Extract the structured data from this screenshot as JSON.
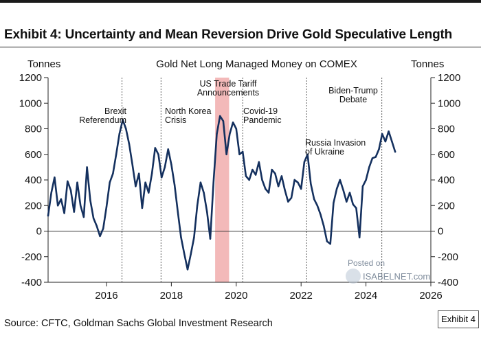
{
  "header": {
    "title": "Exhibit 4: Uncertainty and Mean Reversion Drive Gold Speculative Length",
    "source": "Source: CFTC, Goldman Sachs Global Investment Research",
    "exhibit_tag": "Exhibit 4"
  },
  "watermark": {
    "line1": "Posted on",
    "line2": "ISABELNET.com"
  },
  "colors": {
    "line": "#14305e",
    "shade": "#f0a8a8",
    "axis": "#222222"
  },
  "chart_data": {
    "type": "line",
    "title": "Gold Net Long Managed Money on COMEX",
    "ylabel_left": "Tonnes",
    "ylabel_right": "Tonnes",
    "xlim": [
      2014.2,
      2026
    ],
    "ylim": [
      -400,
      1200
    ],
    "yticks": [
      1200,
      1000,
      800,
      600,
      400,
      200,
      0,
      -200,
      -400
    ],
    "xticks": [
      2016,
      2018,
      2020,
      2022,
      2024,
      2026
    ],
    "shaded_region": {
      "label": "US Trade Tariff Announcements",
      "x_start": 2019.35,
      "x_end": 2019.78
    },
    "events": [
      {
        "lines": [
          "Brexit",
          "Referendum"
        ],
        "x": 2016.48
      },
      {
        "lines": [
          "North Korea",
          "Crisis"
        ],
        "x": 2017.68
      },
      {
        "lines": [
          "US Trade Tariff",
          "Announcements"
        ],
        "x": 2019.55
      },
      {
        "lines": [
          "Covid-19",
          "Pandemic"
        ],
        "x": 2020.2
      },
      {
        "lines": [
          "Russia Invasion",
          "of Ukraine"
        ],
        "x": 2022.17
      },
      {
        "lines": [
          "Biden-Trump",
          "Debate"
        ],
        "x": 2024.49
      }
    ],
    "series": [
      {
        "name": "Gold Net Long Managed Money",
        "x": [
          2014.2,
          2014.3,
          2014.4,
          2014.5,
          2014.6,
          2014.7,
          2014.8,
          2014.9,
          2015.0,
          2015.1,
          2015.2,
          2015.3,
          2015.4,
          2015.5,
          2015.6,
          2015.7,
          2015.8,
          2015.9,
          2016.0,
          2016.1,
          2016.2,
          2016.3,
          2016.4,
          2016.5,
          2016.6,
          2016.7,
          2016.8,
          2016.9,
          2017.0,
          2017.1,
          2017.2,
          2017.3,
          2017.4,
          2017.5,
          2017.6,
          2017.7,
          2017.8,
          2017.9,
          2018.0,
          2018.1,
          2018.2,
          2018.3,
          2018.4,
          2018.5,
          2018.6,
          2018.7,
          2018.8,
          2018.9,
          2019.0,
          2019.1,
          2019.2,
          2019.3,
          2019.4,
          2019.5,
          2019.6,
          2019.7,
          2019.8,
          2019.9,
          2020.0,
          2020.1,
          2020.2,
          2020.3,
          2020.4,
          2020.5,
          2020.6,
          2020.7,
          2020.8,
          2020.9,
          2021.0,
          2021.1,
          2021.2,
          2021.3,
          2021.4,
          2021.5,
          2021.6,
          2021.7,
          2021.8,
          2021.9,
          2022.0,
          2022.1,
          2022.2,
          2022.3,
          2022.4,
          2022.5,
          2022.6,
          2022.7,
          2022.8,
          2022.9,
          2023.0,
          2023.1,
          2023.2,
          2023.3,
          2023.4,
          2023.5,
          2023.6,
          2023.7,
          2023.8,
          2023.9,
          2024.0,
          2024.1,
          2024.2,
          2024.3,
          2024.4,
          2024.5,
          2024.6,
          2024.7,
          2024.8,
          2024.9
        ],
        "values": [
          120,
          300,
          420,
          200,
          250,
          140,
          390,
          320,
          150,
          380,
          200,
          110,
          500,
          240,
          100,
          40,
          -40,
          20,
          190,
          380,
          450,
          600,
          760,
          870,
          800,
          680,
          520,
          350,
          450,
          180,
          380,
          300,
          450,
          650,
          600,
          420,
          500,
          640,
          520,
          360,
          150,
          -50,
          -180,
          -300,
          -180,
          -50,
          200,
          380,
          300,
          150,
          -60,
          380,
          760,
          900,
          860,
          600,
          760,
          850,
          800,
          600,
          620,
          430,
          400,
          480,
          440,
          540,
          400,
          330,
          300,
          480,
          450,
          350,
          430,
          320,
          230,
          260,
          400,
          380,
          330,
          540,
          600,
          370,
          250,
          200,
          130,
          40,
          -80,
          -100,
          220,
          330,
          400,
          320,
          230,
          300,
          210,
          180,
          -50,
          350,
          400,
          500,
          570,
          580,
          640,
          760,
          700,
          780,
          700,
          620
        ]
      }
    ]
  }
}
